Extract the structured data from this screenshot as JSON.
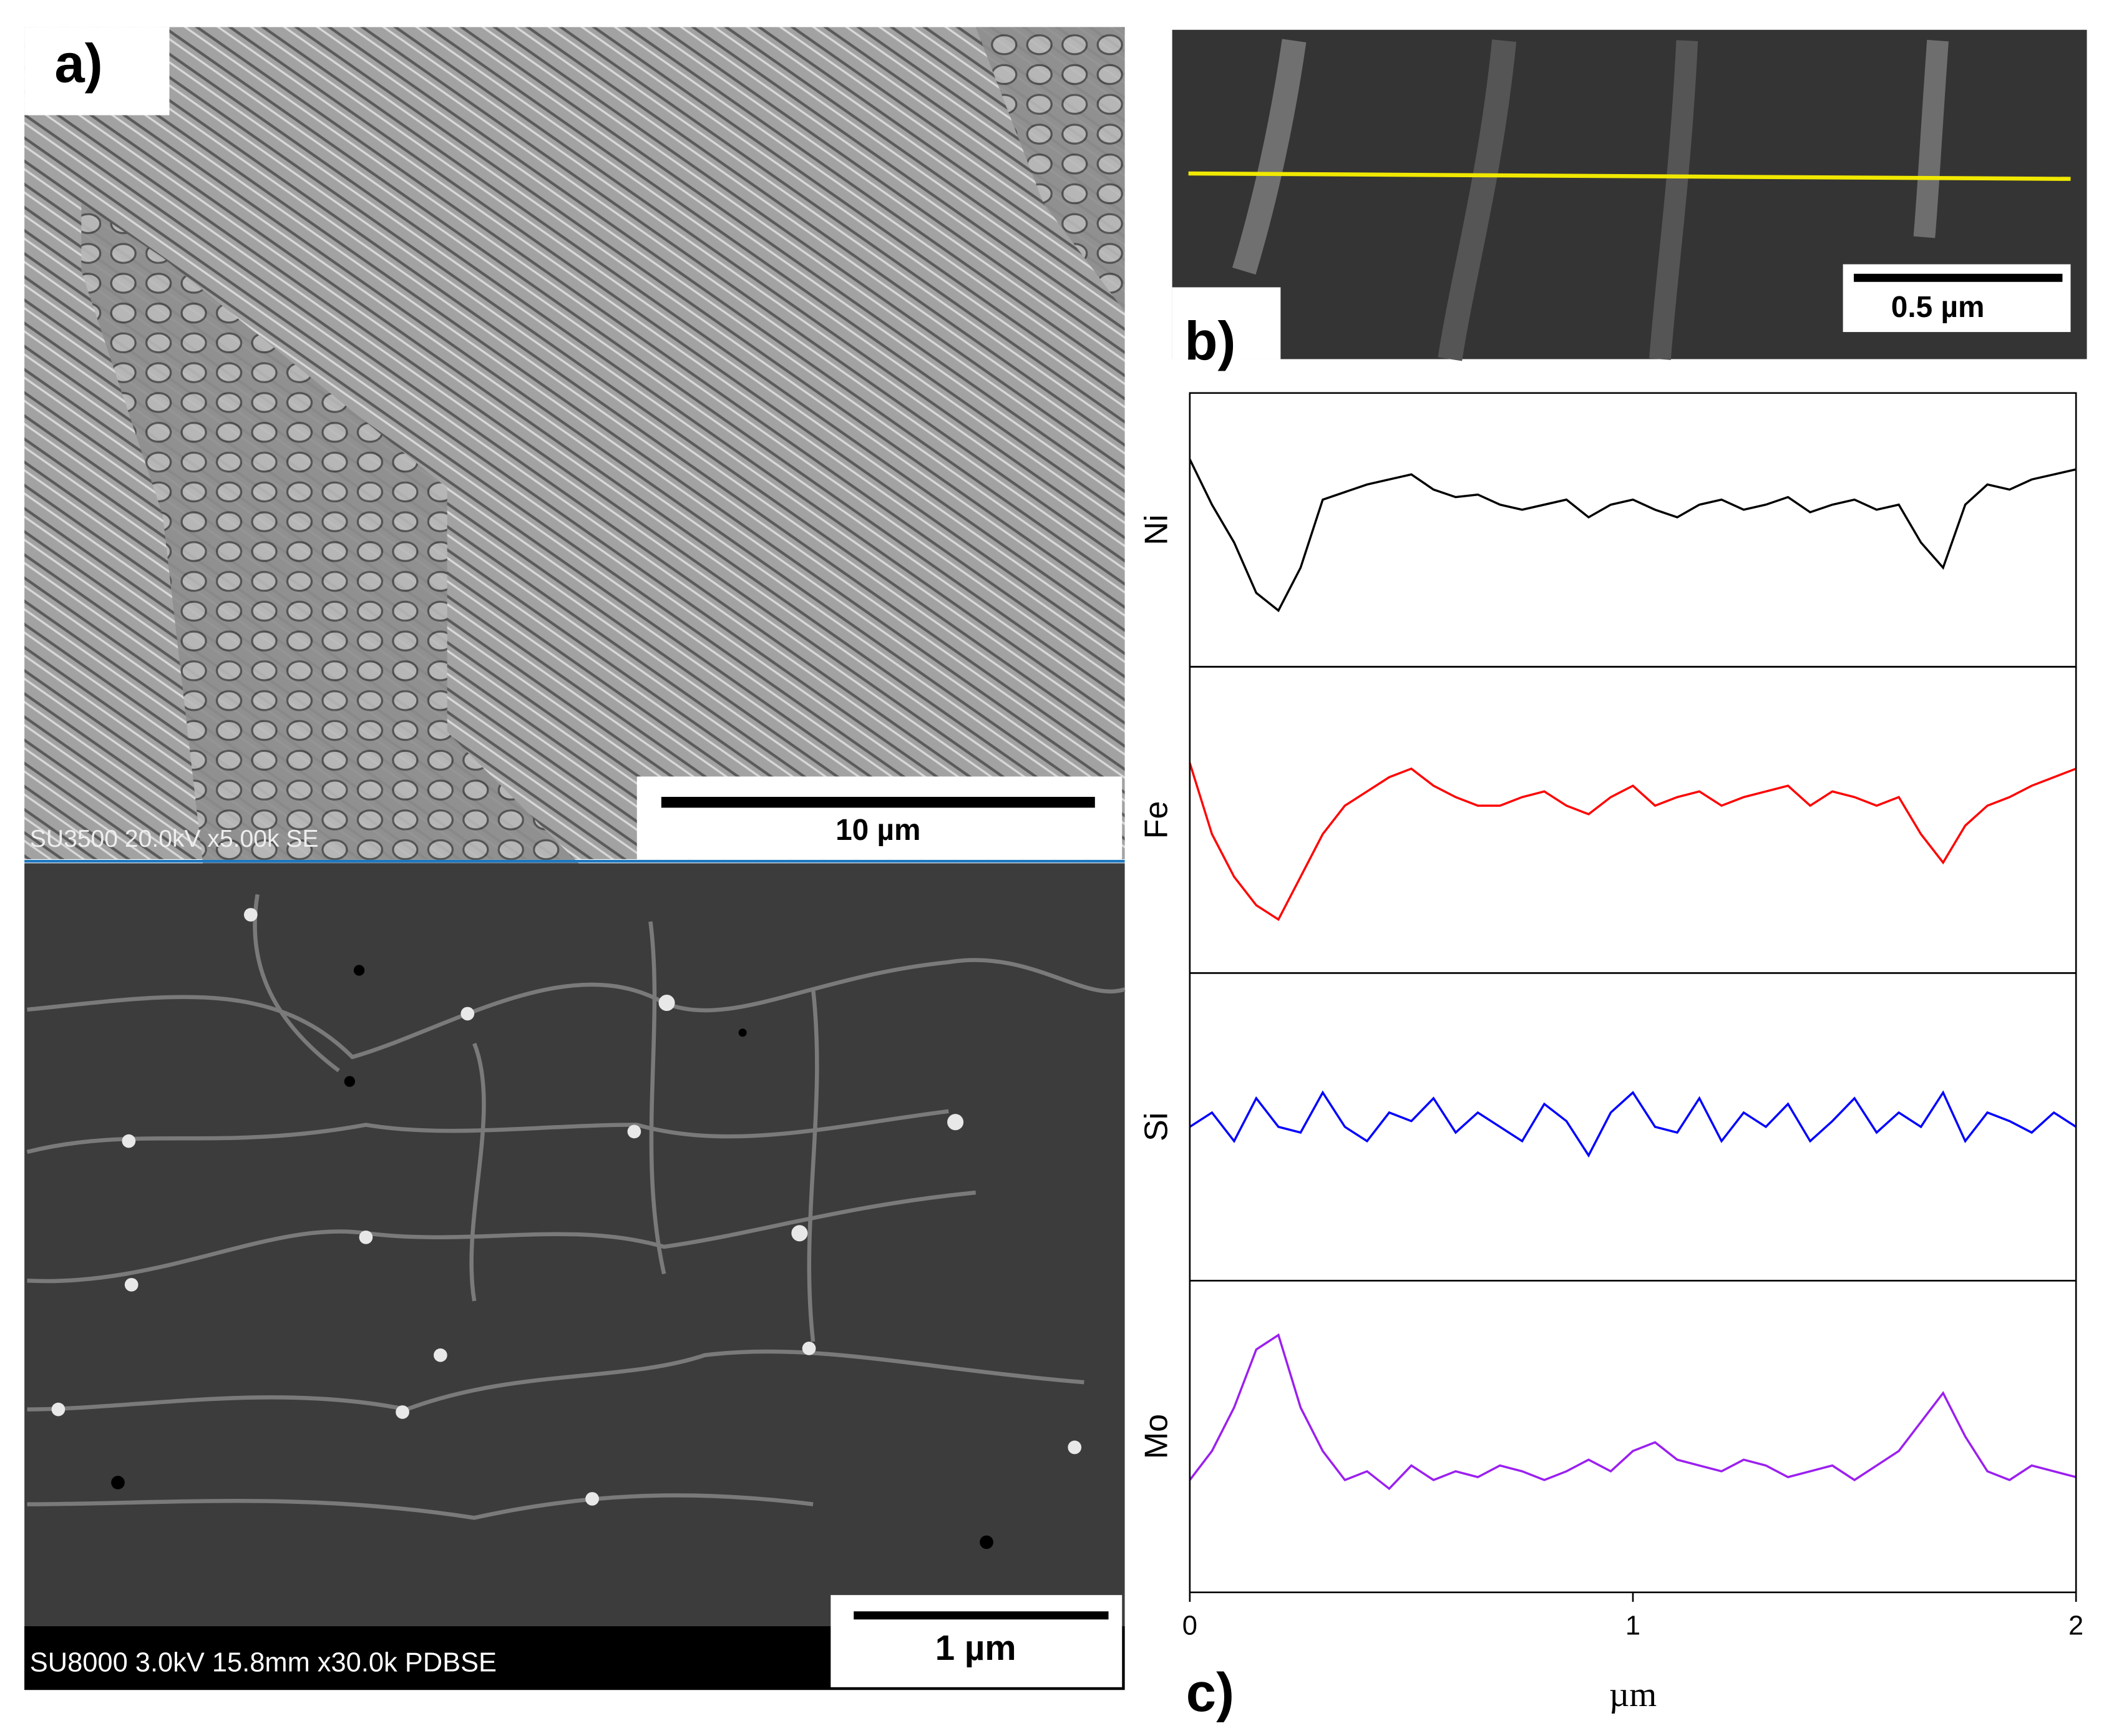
{
  "figure": {
    "panel_a_label": "a)",
    "panel_b_label": "b)",
    "panel_c_label": "c)",
    "top_scale_bar": "10 µm",
    "top_caption": "SU3500 20.0kV x5.00k SE",
    "bottom_scale_bar": "1 µm",
    "bottom_caption": "SU8000 3.0kV 15.8mm x30.0k PDBSE",
    "inset_scale_bar": "0.5 µm"
  },
  "chart_data": [
    {
      "type": "line",
      "xlim": [
        0,
        2
      ],
      "ylim": [
        0,
        100
      ],
      "x": [
        0,
        0.05,
        0.1,
        0.15,
        0.2,
        0.25,
        0.3,
        0.35,
        0.4,
        0.45,
        0.5,
        0.55,
        0.6,
        0.65,
        0.7,
        0.75,
        0.8,
        0.85,
        0.9,
        0.95,
        1,
        1.05,
        1.1,
        1.15,
        1.2,
        1.25,
        1.3,
        1.35,
        1.4,
        1.45,
        1.5,
        1.55,
        1.6,
        1.65,
        1.7,
        1.75,
        1.8,
        1.85,
        1.9,
        1.95,
        2
      ],
      "series": [
        {
          "name": "Ni",
          "color": "#000000",
          "values": [
            78,
            60,
            45,
            25,
            18,
            35,
            62,
            65,
            68,
            70,
            72,
            66,
            63,
            64,
            60,
            58,
            60,
            62,
            55,
            60,
            62,
            58,
            55,
            60,
            62,
            58,
            60,
            63,
            57,
            60,
            62,
            58,
            60,
            45,
            35,
            60,
            68,
            66,
            70,
            72,
            74
          ]
        }
      ]
    },
    {
      "type": "line",
      "xlim": [
        0,
        2
      ],
      "ylim": [
        0,
        100
      ],
      "x": [
        0,
        0.05,
        0.1,
        0.15,
        0.2,
        0.25,
        0.3,
        0.35,
        0.4,
        0.45,
        0.5,
        0.55,
        0.6,
        0.65,
        0.7,
        0.75,
        0.8,
        0.85,
        0.9,
        0.95,
        1,
        1.05,
        1.1,
        1.15,
        1.2,
        1.25,
        1.3,
        1.35,
        1.4,
        1.45,
        1.5,
        1.55,
        1.6,
        1.65,
        1.7,
        1.75,
        1.8,
        1.85,
        1.9,
        1.95,
        2
      ],
      "series": [
        {
          "name": "Fe",
          "color": "#ff0000",
          "values": [
            70,
            45,
            30,
            20,
            15,
            30,
            45,
            55,
            60,
            65,
            68,
            62,
            58,
            55,
            55,
            58,
            60,
            55,
            52,
            58,
            62,
            55,
            58,
            60,
            55,
            58,
            60,
            62,
            55,
            60,
            58,
            55,
            58,
            45,
            35,
            48,
            55,
            58,
            62,
            65,
            68
          ]
        }
      ]
    },
    {
      "type": "line",
      "xlim": [
        0,
        2
      ],
      "ylim": [
        0,
        100
      ],
      "x": [
        0,
        0.05,
        0.1,
        0.15,
        0.2,
        0.25,
        0.3,
        0.35,
        0.4,
        0.45,
        0.5,
        0.55,
        0.6,
        0.65,
        0.7,
        0.75,
        0.8,
        0.85,
        0.9,
        0.95,
        1,
        1.05,
        1.1,
        1.15,
        1.2,
        1.25,
        1.3,
        1.35,
        1.4,
        1.45,
        1.5,
        1.55,
        1.6,
        1.65,
        1.7,
        1.75,
        1.8,
        1.85,
        1.9,
        1.95,
        2
      ],
      "series": [
        {
          "name": "Si",
          "color": "#0000ff",
          "values": [
            50,
            55,
            45,
            60,
            50,
            48,
            62,
            50,
            45,
            55,
            52,
            60,
            48,
            55,
            50,
            45,
            58,
            52,
            40,
            55,
            62,
            50,
            48,
            60,
            45,
            55,
            50,
            58,
            45,
            52,
            60,
            48,
            55,
            50,
            62,
            45,
            55,
            52,
            48,
            55,
            50
          ]
        }
      ]
    },
    {
      "type": "line",
      "xlim": [
        0,
        2
      ],
      "ylim": [
        0,
        100
      ],
      "xticks": [
        0,
        1,
        2
      ],
      "xlabel": "µm",
      "x": [
        0,
        0.05,
        0.1,
        0.15,
        0.2,
        0.25,
        0.3,
        0.35,
        0.4,
        0.45,
        0.5,
        0.55,
        0.6,
        0.65,
        0.7,
        0.75,
        0.8,
        0.85,
        0.9,
        0.95,
        1,
        1.05,
        1.1,
        1.15,
        1.2,
        1.25,
        1.3,
        1.35,
        1.4,
        1.45,
        1.5,
        1.55,
        1.6,
        1.65,
        1.7,
        1.75,
        1.8,
        1.85,
        1.9,
        1.95,
        2
      ],
      "series": [
        {
          "name": "Mo",
          "color": "#9b1ff0",
          "values": [
            35,
            45,
            60,
            80,
            85,
            60,
            45,
            35,
            38,
            32,
            40,
            35,
            38,
            36,
            40,
            38,
            35,
            38,
            42,
            38,
            45,
            48,
            42,
            40,
            38,
            42,
            40,
            36,
            38,
            40,
            35,
            40,
            45,
            55,
            65,
            50,
            38,
            35,
            40,
            38,
            36
          ]
        }
      ]
    }
  ]
}
